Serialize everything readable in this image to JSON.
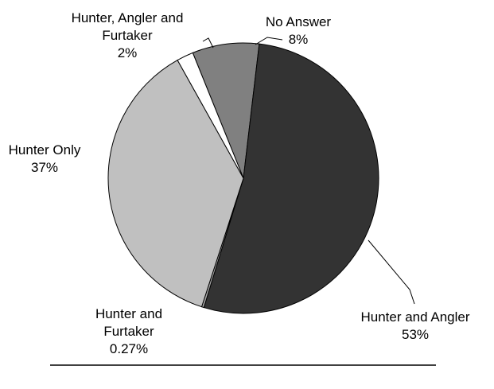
{
  "chart_data": {
    "type": "pie",
    "title": "",
    "start_angle_deg": -22,
    "direction": "clockwise",
    "slices": [
      {
        "label_lines": [
          "No Answer",
          "8%"
        ],
        "value": 8,
        "color": "#808080"
      },
      {
        "label_lines": [
          "Hunter and Angler",
          "53%"
        ],
        "value": 53,
        "color": "#333333"
      },
      {
        "label_lines": [
          "Hunter and",
          "Furtaker",
          "0.27%"
        ],
        "value": 0.27,
        "color": "#a6a6a6"
      },
      {
        "label_lines": [
          "Hunter Only",
          "37%"
        ],
        "value": 37,
        "color": "#c0c0c0"
      },
      {
        "label_lines": [
          "Hunter, Angler and",
          "Furtaker",
          "2%"
        ],
        "value": 2,
        "color": "#ffffff"
      }
    ]
  }
}
